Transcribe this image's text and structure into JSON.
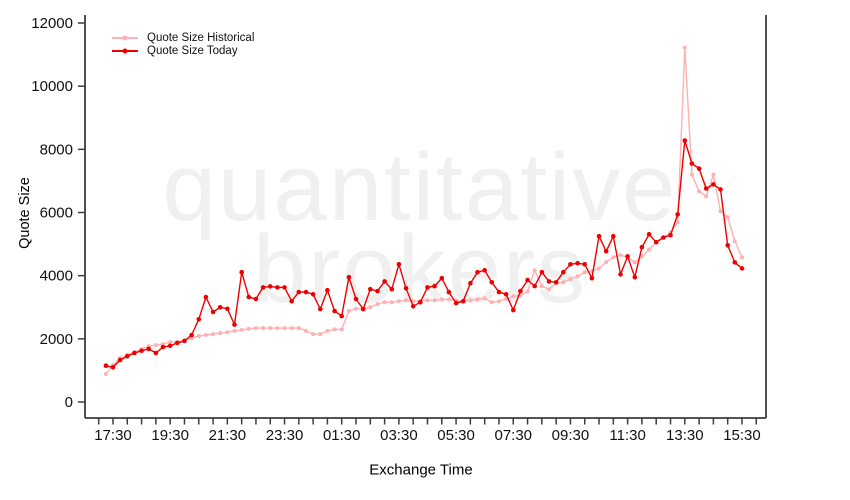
{
  "page": {
    "background": "#ffffff"
  },
  "watermark": {
    "line1": "quantitative",
    "line2": "brokers",
    "color": "#f0f0f0"
  },
  "colors": {
    "axis": "#3c3c3c",
    "tick_text": "#111111",
    "historical": "#ffb0b0",
    "today": "#ee0000"
  },
  "chart_data": {
    "type": "line",
    "title": "",
    "xlabel": "Exchange Time",
    "ylabel": "Quote Size",
    "ylim": [
      0,
      12000
    ],
    "y_ticks": [
      0,
      2000,
      4000,
      6000,
      8000,
      10000,
      12000
    ],
    "grid": false,
    "legend_position": "top-left",
    "x_minor_tick_interval_minutes": 30,
    "x_major_tick_labels": [
      "17:30",
      "19:30",
      "21:30",
      "23:30",
      "01:30",
      "03:30",
      "05:30",
      "07:30",
      "09:30",
      "11:30",
      "13:30",
      "15:30"
    ],
    "x": [
      "17:15",
      "17:30",
      "17:45",
      "18:00",
      "18:15",
      "18:30",
      "18:45",
      "19:00",
      "19:15",
      "19:30",
      "19:45",
      "20:00",
      "20:15",
      "20:30",
      "20:45",
      "21:00",
      "21:15",
      "21:30",
      "21:45",
      "22:00",
      "22:15",
      "22:30",
      "22:45",
      "23:00",
      "23:15",
      "23:30",
      "23:45",
      "00:00",
      "00:15",
      "00:30",
      "00:45",
      "01:00",
      "01:15",
      "01:30",
      "01:45",
      "02:00",
      "02:15",
      "02:30",
      "02:45",
      "03:00",
      "03:15",
      "03:30",
      "03:45",
      "04:00",
      "04:15",
      "04:30",
      "04:45",
      "05:00",
      "05:15",
      "05:30",
      "05:45",
      "06:00",
      "06:15",
      "06:30",
      "06:45",
      "07:00",
      "07:15",
      "07:30",
      "07:45",
      "08:00",
      "08:15",
      "08:30",
      "08:45",
      "09:00",
      "09:15",
      "09:30",
      "09:45",
      "10:00",
      "10:15",
      "10:30",
      "10:45",
      "11:00",
      "11:15",
      "11:30",
      "11:45",
      "12:00",
      "12:15",
      "12:30",
      "12:45",
      "13:00",
      "13:15",
      "13:30",
      "13:45",
      "14:00",
      "14:15",
      "14:30",
      "14:45",
      "15:00",
      "15:15",
      "15:30"
    ],
    "series": [
      {
        "name": "Quote Size Historical",
        "color": "#ffb0b0",
        "values": [
          885,
          1170,
          1390,
          1490,
          1580,
          1675,
          1770,
          1800,
          1830,
          1895,
          1895,
          1960,
          2020,
          2090,
          2120,
          2150,
          2180,
          2210,
          2250,
          2280,
          2320,
          2340,
          2340,
          2340,
          2340,
          2340,
          2340,
          2340,
          2250,
          2150,
          2150,
          2250,
          2300,
          2300,
          2880,
          2950,
          2950,
          3000,
          3100,
          3160,
          3160,
          3190,
          3220,
          3190,
          3190,
          3220,
          3220,
          3250,
          3250,
          3220,
          3190,
          3220,
          3250,
          3280,
          3160,
          3190,
          3260,
          3350,
          3380,
          3500,
          4170,
          3670,
          3570,
          3760,
          3790,
          3890,
          3980,
          4110,
          4140,
          4230,
          4430,
          4580,
          4650,
          4580,
          4420,
          4610,
          4830,
          5060,
          5210,
          5370,
          5690,
          11220,
          7200,
          6670,
          6510,
          7200,
          6040,
          5850,
          5090,
          4580
        ]
      },
      {
        "name": "Quote Size Today",
        "color": "#ee0000",
        "values": [
          1150,
          1100,
          1330,
          1450,
          1550,
          1620,
          1680,
          1550,
          1740,
          1780,
          1870,
          1930,
          2120,
          2620,
          3320,
          2850,
          3000,
          2950,
          2450,
          4110,
          3320,
          3260,
          3630,
          3660,
          3630,
          3630,
          3190,
          3480,
          3480,
          3410,
          2940,
          3540,
          2880,
          2720,
          3950,
          3260,
          2940,
          3570,
          3510,
          3820,
          3570,
          4360,
          3600,
          3030,
          3160,
          3630,
          3670,
          3920,
          3480,
          3130,
          3190,
          3760,
          4110,
          4170,
          3790,
          3480,
          3410,
          2910,
          3510,
          3860,
          3670,
          4110,
          3820,
          3790,
          4110,
          4360,
          4390,
          4360,
          3920,
          5250,
          4770,
          5250,
          4040,
          4610,
          3950,
          4900,
          5310,
          5060,
          5210,
          5280,
          5940,
          8280,
          7550,
          7390,
          6760,
          6890,
          6730,
          4960,
          4420,
          4230
        ]
      }
    ]
  }
}
